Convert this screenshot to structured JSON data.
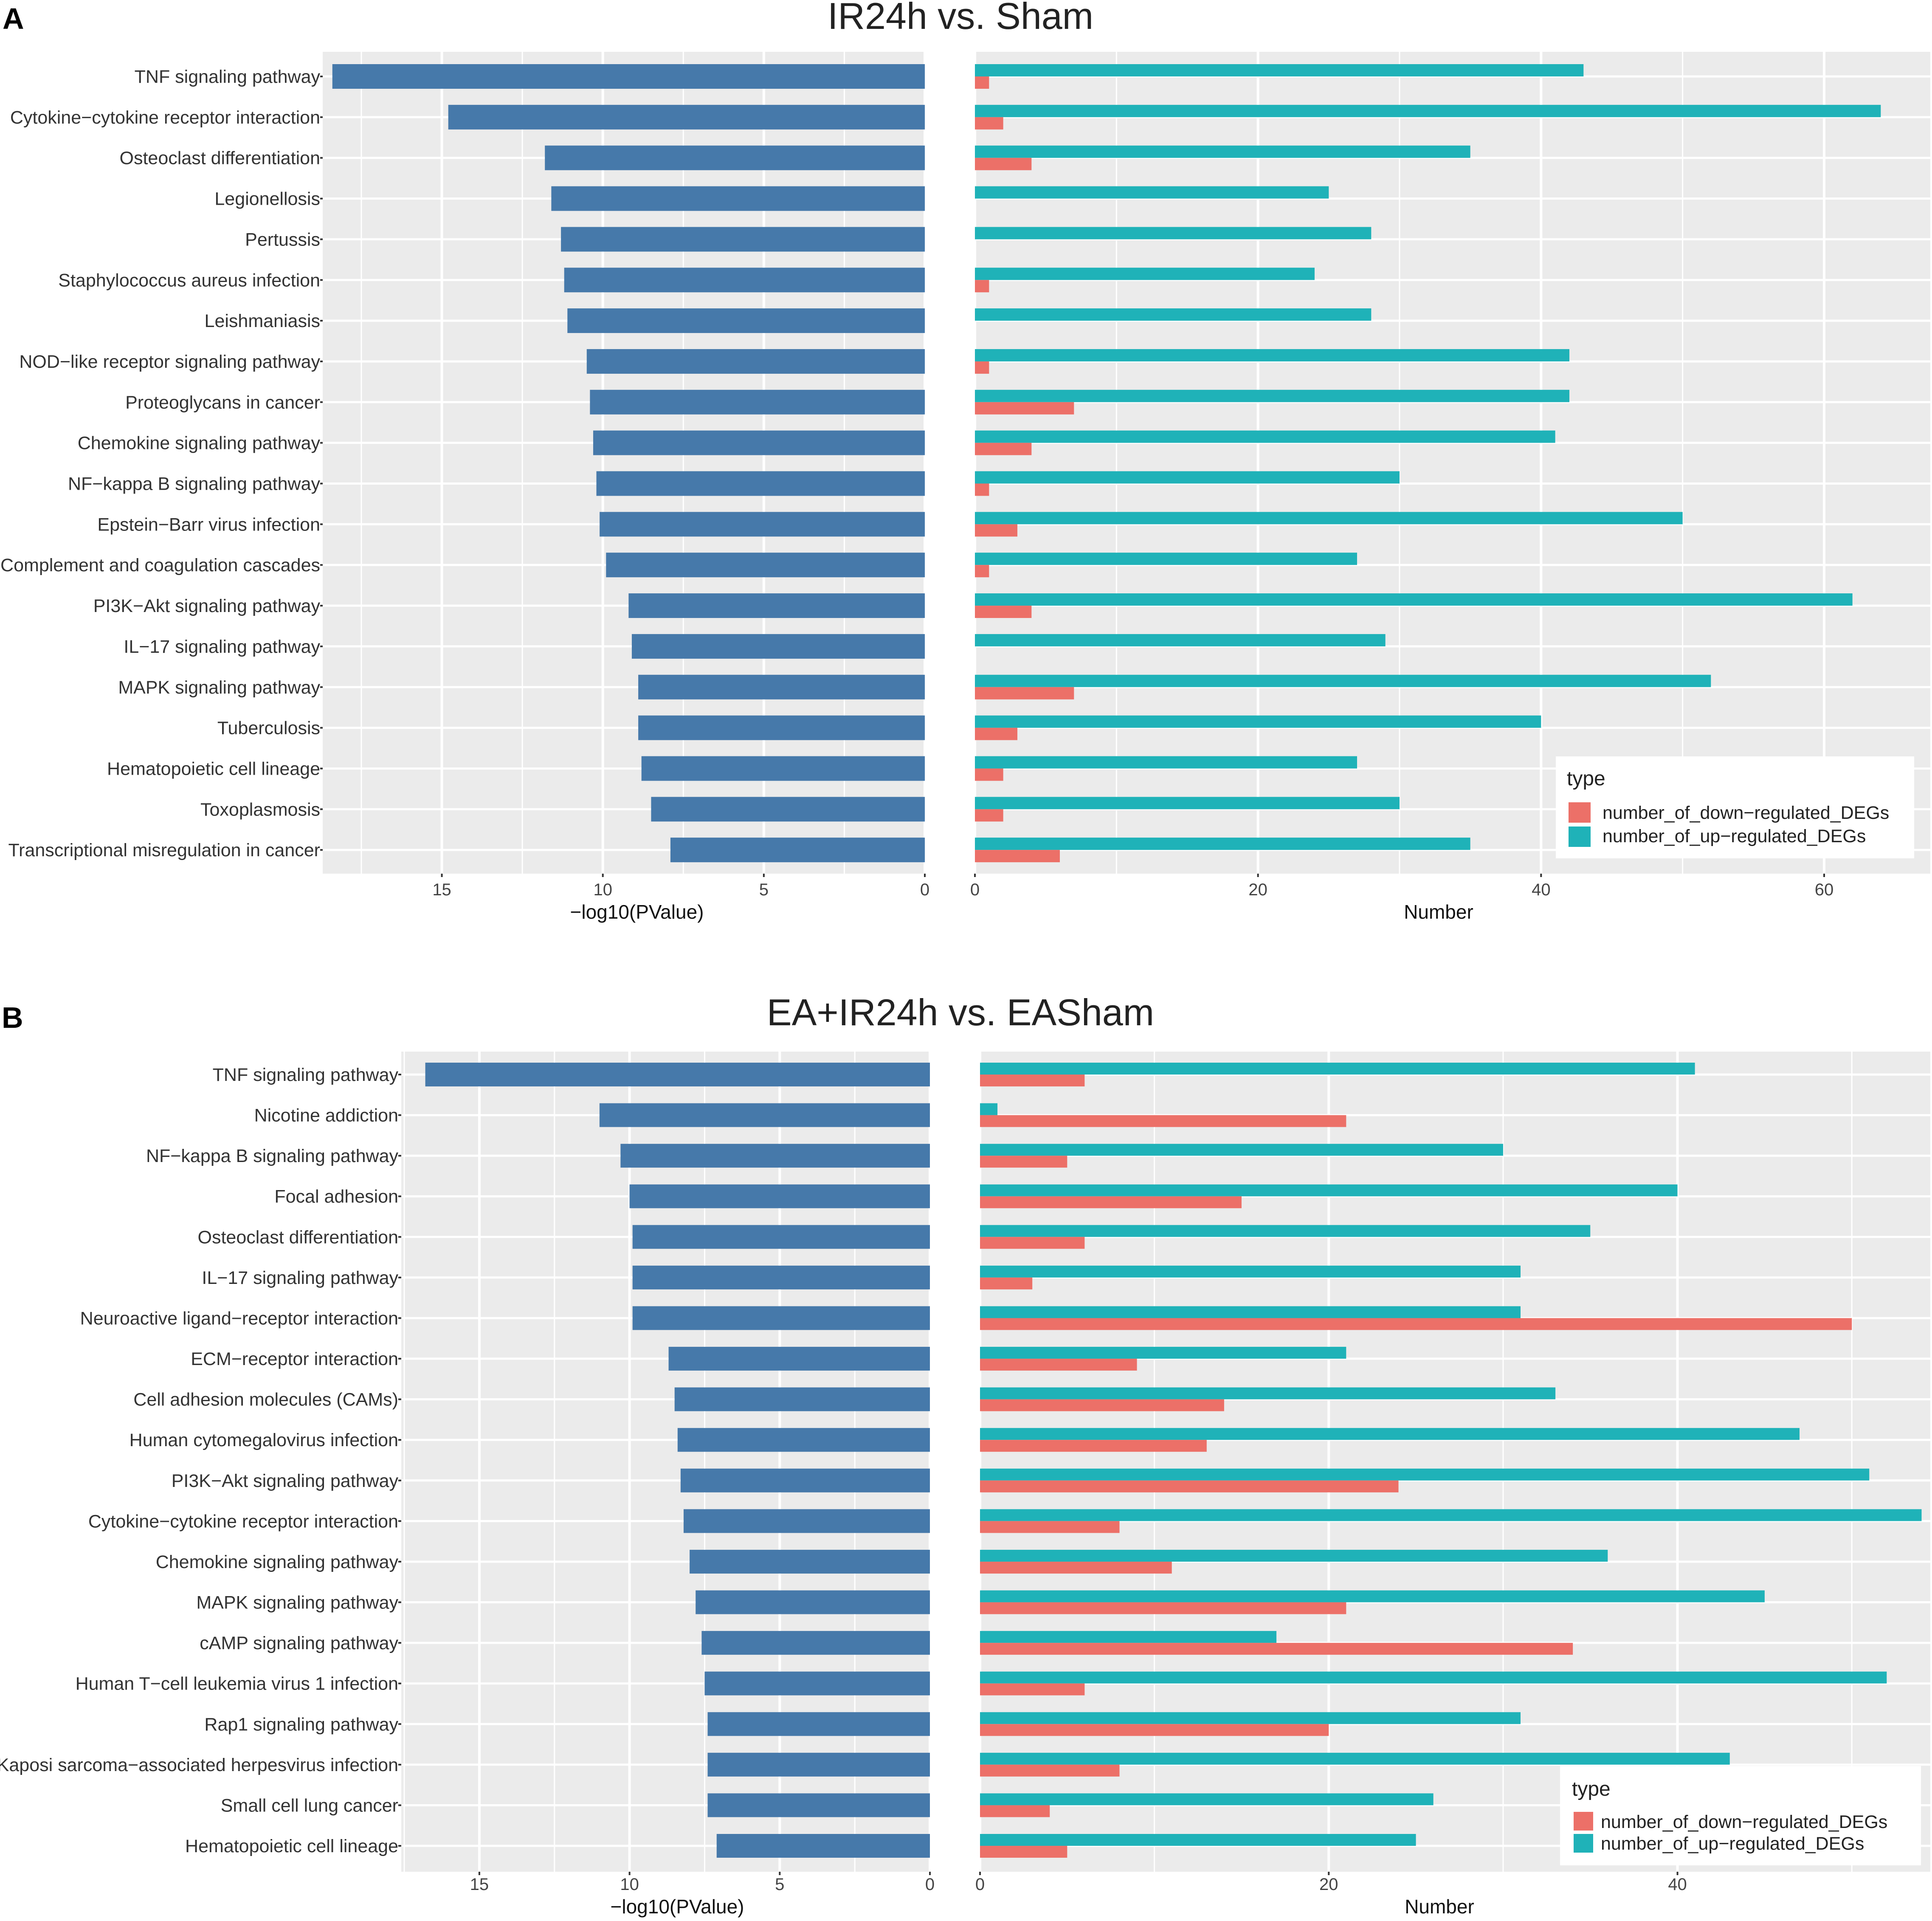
{
  "chart_data": [
    {
      "panel_label": "A",
      "title": "IR24h vs. Sham",
      "type": "bar",
      "categories": [
        "TNF signaling pathway",
        "Cytokine−cytokine receptor interaction",
        "Osteoclast differentiation",
        "Legionellosis",
        "Pertussis",
        "Staphylococcus aureus infection",
        "Leishmaniasis",
        "NOD−like receptor signaling pathway",
        "Proteoglycans in cancer",
        "Chemokine signaling pathway",
        "NF−kappa B signaling pathway",
        "Epstein−Barr virus infection",
        "Complement and coagulation cascades",
        "PI3K−Akt signaling pathway",
        "IL−17 signaling pathway",
        "MAPK signaling pathway",
        "Tuberculosis",
        "Hematopoietic cell lineage",
        "Toxoplasmosis",
        "Transcriptional misregulation in cancer"
      ],
      "left": {
        "xlabel": "−log10(PValue)",
        "xlim": [
          18.7,
          0
        ],
        "ticks": [
          15,
          10,
          5,
          0
        ],
        "values": [
          18.4,
          14.8,
          11.8,
          11.6,
          11.3,
          11.2,
          11.1,
          10.5,
          10.4,
          10.3,
          10.2,
          10.1,
          9.9,
          9.2,
          9.1,
          8.9,
          8.9,
          8.8,
          8.5,
          7.9
        ]
      },
      "right": {
        "xlabel": "Number",
        "xlim": [
          0,
          67.5
        ],
        "ticks": [
          0,
          20,
          40,
          60
        ],
        "series": [
          {
            "name": "number_of_up−regulated_DEGs",
            "color": "#1fb2b8",
            "values": [
              43,
              64,
              35,
              25,
              28,
              24,
              28,
              42,
              42,
              41,
              30,
              50,
              27,
              62,
              29,
              52,
              40,
              27,
              30,
              35
            ]
          },
          {
            "name": "number_of_down−regulated_DEGs",
            "color": "#ec7068",
            "values": [
              1,
              2,
              4,
              0,
              0,
              1,
              0,
              1,
              7,
              4,
              1,
              3,
              1,
              4,
              0,
              7,
              3,
              2,
              2,
              6
            ]
          }
        ]
      },
      "legend": {
        "title": "type",
        "items": [
          {
            "label": "number_of_down−regulated_DEGs",
            "color": "#ec7068"
          },
          {
            "label": "number_of_up−regulated_DEGs",
            "color": "#1fb2b8"
          }
        ],
        "position": "bottom-right"
      },
      "bar_color": "#4679aa"
    },
    {
      "panel_label": "B",
      "title": "EA+IR24h vs. EASham",
      "type": "bar",
      "categories": [
        "TNF signaling pathway",
        "Nicotine addiction",
        "NF−kappa B signaling pathway",
        "Focal adhesion",
        "Osteoclast differentiation",
        "IL−17 signaling pathway",
        "Neuroactive ligand−receptor interaction",
        "ECM−receptor interaction",
        "Cell adhesion molecules (CAMs)",
        "Human cytomegalovirus infection",
        "PI3K−Akt signaling pathway",
        "Cytokine−cytokine receptor interaction",
        "Chemokine signaling pathway",
        "MAPK signaling pathway",
        "cAMP signaling pathway",
        "Human T−cell leukemia virus 1 infection",
        "Rap1 signaling pathway",
        "Kaposi sarcoma−associated herpesvirus infection",
        "Small cell lung cancer",
        "Hematopoietic cell lineage"
      ],
      "left": {
        "xlabel": "−log10(PValue)",
        "xlim": [
          17.6,
          0
        ],
        "ticks": [
          15,
          10,
          5,
          0
        ],
        "values": [
          16.8,
          11.0,
          10.3,
          10.0,
          9.9,
          9.9,
          9.9,
          8.7,
          8.5,
          8.4,
          8.3,
          8.2,
          8.0,
          7.8,
          7.6,
          7.5,
          7.4,
          7.4,
          7.4,
          7.1
        ]
      },
      "right": {
        "xlabel": "Number",
        "xlim": [
          0,
          54.5
        ],
        "ticks": [
          0,
          20,
          40
        ],
        "series": [
          {
            "name": "number_of_up−regulated_DEGs",
            "color": "#1fb2b8",
            "values": [
              41,
              1,
              30,
              40,
              35,
              31,
              31,
              21,
              33,
              47,
              51,
              54,
              36,
              45,
              17,
              52,
              31,
              43,
              26,
              25
            ]
          },
          {
            "name": "number_of_down−regulated_DEGs",
            "color": "#ec7068",
            "values": [
              6,
              21,
              5,
              15,
              6,
              3,
              50,
              9,
              14,
              13,
              24,
              8,
              11,
              21,
              34,
              6,
              20,
              8,
              4,
              5
            ]
          }
        ]
      },
      "legend": {
        "title": "type",
        "items": [
          {
            "label": "number_of_down−regulated_DEGs",
            "color": "#ec7068"
          },
          {
            "label": "number_of_up−regulated_DEGs",
            "color": "#1fb2b8"
          }
        ],
        "position": "bottom-right"
      },
      "bar_color": "#4679aa"
    }
  ]
}
